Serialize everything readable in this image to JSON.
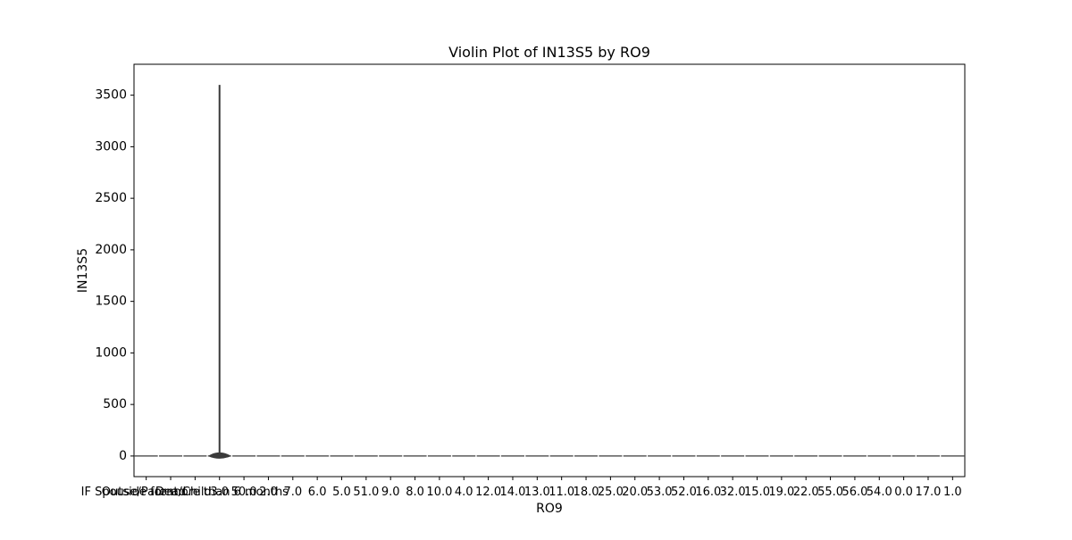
{
  "chart_data": {
    "type": "violin",
    "title": "Violin Plot of IN13S5 by RO9",
    "xlabel": "RO9",
    "ylabel": "IN13S5",
    "categories": [
      "IF Spouse/Parent/Child",
      "Dead",
      "Outside for more than 6 months",
      "1.0",
      "3.0",
      "50.0",
      "2.0",
      "7.0",
      "6.0",
      "5.0",
      "51.0",
      "9.0",
      "8.0",
      "10.0",
      "4.0",
      "12.0",
      "14.0",
      "13.0",
      "11.0",
      "18.0",
      "25.0",
      "20.0",
      "53.0",
      "52.0",
      "16.0",
      "32.0",
      "15.0",
      "19.0",
      "22.0",
      "55.0",
      "56.0",
      "54.0",
      "0.0",
      "17.0"
    ],
    "xtick_labels": [
      "IF Spouse/Parent/Child",
      "Dead",
      "Outside for more than 6 months",
      "3.0",
      "50.0",
      "2.0",
      "7.0",
      "6.0",
      "5.0",
      "51.0",
      "9.0",
      "8.0",
      "10.0",
      "4.0",
      "12.0",
      "14.0",
      "13.0",
      "11.0",
      "18.0",
      "25.0",
      "20.0",
      "53.0",
      "52.0",
      "16.0",
      "32.0",
      "15.0",
      "19.0",
      "22.0",
      "55.0",
      "56.0",
      "54.0",
      "0.0",
      "17.0",
      "1.0"
    ],
    "series": [
      {
        "values": [
          {
            "category": "1.0",
            "min": 0,
            "max": 3600
          }
        ]
      }
    ],
    "ylim": [
      -200,
      3800
    ],
    "yticks": [
      0,
      500,
      1000,
      1500,
      2000,
      2500,
      3000,
      3500
    ],
    "grid": false,
    "legend": "none",
    "colors": {
      "violin_fill": "#3a3a3a",
      "violin_stroke": "#3a3a3a",
      "axis": "#000000",
      "background": "#ffffff"
    }
  }
}
